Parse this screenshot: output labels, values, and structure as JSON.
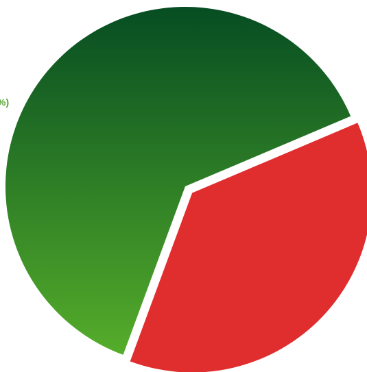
{
  "chart_data": {
    "type": "pie",
    "slices": [
      {
        "label_text": "%)",
        "value": 63,
        "color_top": "#064d22",
        "color_bottom": "#55ad2a",
        "exploded": false
      },
      {
        "label_text": "",
        "value": 37,
        "color": "#e02d2d",
        "exploded": true
      }
    ],
    "legend": "none",
    "label_color": "#4fa52c"
  }
}
